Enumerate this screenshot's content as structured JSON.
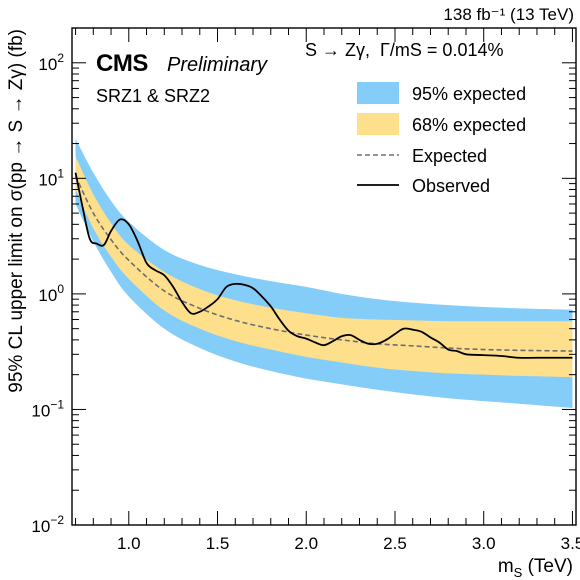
{
  "chart_data": {
    "type": "line",
    "title": "",
    "lumi_label": "138 fb⁻¹ (13 TeV)",
    "experiment": "CMS",
    "status": "Preliminary",
    "region_label": "SRZ1 & SRZ2",
    "signal_label": "S → Zγ,  Γ/mS = 0.014%",
    "xlabel": "m_S (TeV)",
    "ylabel": "95% CL upper limit on σ(pp → S → Zγ) (fb)",
    "xlim": [
      0.68,
      3.52
    ],
    "ylim": [
      0.01,
      200
    ],
    "yscale": "log",
    "grid": false,
    "legend_position": "top-right",
    "x_ticks": [
      1.0,
      1.5,
      2.0,
      2.5,
      3.0,
      3.5
    ],
    "x_tick_labels": [
      "1.0",
      "1.5",
      "2.0",
      "2.5",
      "3.0",
      "3.5"
    ],
    "y_ticks": [
      0.01,
      0.1,
      1,
      10,
      100
    ],
    "y_tick_labels": [
      [
        "10",
        "−2"
      ],
      [
        "10",
        "−1"
      ],
      [
        "10",
        "0"
      ],
      [
        "10",
        "1"
      ],
      [
        "10",
        "2"
      ]
    ],
    "colors": {
      "band95": "#85cdf9",
      "band68": "#fddf8c",
      "expected": "#6e6e6e",
      "observed": "#000000"
    },
    "legend": [
      "95% expected",
      "68% expected",
      "Expected",
      "Observed"
    ],
    "band_x": [
      0.7,
      0.8,
      0.9,
      1.0,
      1.2,
      1.4,
      1.6,
      1.8,
      2.0,
      2.2,
      2.4,
      2.6,
      2.8,
      3.0,
      3.2,
      3.5
    ],
    "series": [
      {
        "name": "95% expected",
        "kind": "band",
        "lower": [
          6.0,
          2.85,
          1.55,
          0.95,
          0.5,
          0.34,
          0.26,
          0.215,
          0.185,
          0.165,
          0.148,
          0.135,
          0.125,
          0.118,
          0.112,
          0.103
        ],
        "upper": [
          22.0,
          11.2,
          6.4,
          4.2,
          2.4,
          1.78,
          1.48,
          1.29,
          1.15,
          1.0,
          0.9,
          0.84,
          0.8,
          0.77,
          0.75,
          0.73
        ]
      },
      {
        "name": "68% expected",
        "kind": "band",
        "lower": [
          8.0,
          3.7,
          2.1,
          1.35,
          0.72,
          0.5,
          0.39,
          0.33,
          0.285,
          0.255,
          0.23,
          0.215,
          0.205,
          0.2,
          0.195,
          0.19
        ],
        "upper": [
          15.5,
          7.3,
          4.1,
          2.65,
          1.55,
          1.1,
          0.88,
          0.76,
          0.68,
          0.62,
          0.6,
          0.59,
          0.58,
          0.58,
          0.58,
          0.58
        ]
      },
      {
        "name": "Expected",
        "kind": "line",
        "x": [
          0.7,
          0.8,
          0.9,
          1.0,
          1.2,
          1.4,
          1.6,
          1.8,
          2.0,
          2.2,
          2.4,
          2.6,
          2.8,
          3.0,
          3.2,
          3.5
        ],
        "y": [
          10.5,
          5.0,
          2.95,
          1.95,
          1.06,
          0.75,
          0.59,
          0.5,
          0.44,
          0.4,
          0.37,
          0.355,
          0.34,
          0.33,
          0.325,
          0.32
        ]
      },
      {
        "name": "Observed",
        "kind": "line",
        "x": [
          0.7,
          0.74,
          0.78,
          0.82,
          0.86,
          0.9,
          0.95,
          1.0,
          1.05,
          1.1,
          1.15,
          1.2,
          1.25,
          1.3,
          1.35,
          1.4,
          1.45,
          1.5,
          1.55,
          1.6,
          1.65,
          1.7,
          1.75,
          1.8,
          1.85,
          1.9,
          1.95,
          2.0,
          2.05,
          2.1,
          2.15,
          2.2,
          2.25,
          2.3,
          2.35,
          2.4,
          2.45,
          2.5,
          2.55,
          2.6,
          2.65,
          2.7,
          2.75,
          2.8,
          2.85,
          2.9,
          3.0,
          3.1,
          3.2,
          3.3,
          3.5
        ],
        "y": [
          11.2,
          5.6,
          3.0,
          2.72,
          2.65,
          3.5,
          4.4,
          4.0,
          2.85,
          1.85,
          1.6,
          1.45,
          1.15,
          0.85,
          0.68,
          0.7,
          0.78,
          0.9,
          1.15,
          1.22,
          1.2,
          1.12,
          0.95,
          0.78,
          0.6,
          0.48,
          0.43,
          0.41,
          0.38,
          0.36,
          0.39,
          0.43,
          0.44,
          0.4,
          0.37,
          0.37,
          0.4,
          0.45,
          0.5,
          0.49,
          0.47,
          0.42,
          0.38,
          0.33,
          0.32,
          0.3,
          0.295,
          0.29,
          0.28,
          0.28,
          0.28
        ]
      }
    ]
  }
}
